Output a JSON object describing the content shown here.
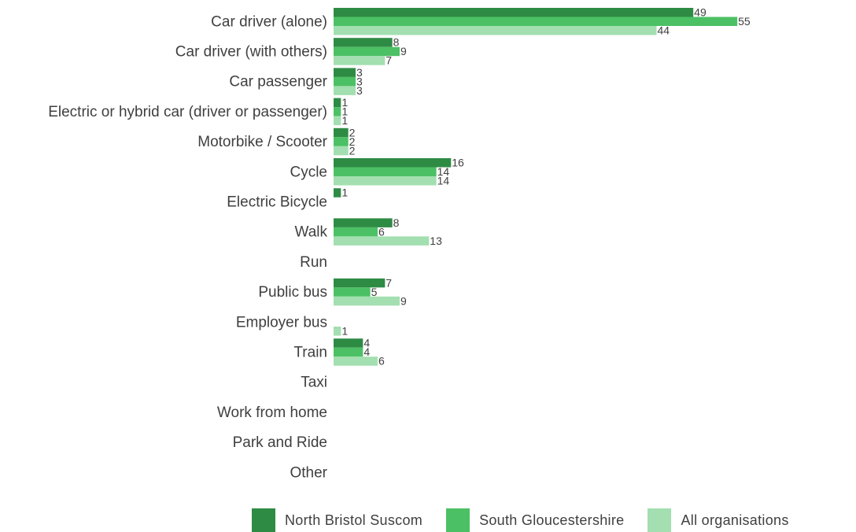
{
  "chart_data": {
    "type": "bar",
    "orientation": "horizontal",
    "categories": [
      "Car driver (alone)",
      "Car driver (with others)",
      "Car passenger",
      "Electric or hybrid car (driver or passenger)",
      "Motorbike / Scooter",
      "Cycle",
      "Electric Bicycle",
      "Walk",
      "Run",
      "Public bus",
      "Employer bus",
      "Train",
      "Taxi",
      "Work from home",
      "Park and Ride",
      "Other"
    ],
    "series": [
      {
        "name": "North Bristol Suscom",
        "color": "#2e8b44",
        "values": [
          49,
          8,
          3,
          1,
          2,
          16,
          1,
          8,
          null,
          7,
          null,
          4,
          null,
          null,
          null,
          null
        ]
      },
      {
        "name": "South Gloucestershire",
        "color": "#4cc064",
        "values": [
          55,
          9,
          3,
          1,
          2,
          14,
          null,
          6,
          null,
          5,
          null,
          4,
          null,
          null,
          null,
          null
        ]
      },
      {
        "name": "All organisations",
        "color": "#a3dfb0",
        "values": [
          44,
          7,
          3,
          1,
          2,
          14,
          null,
          13,
          null,
          9,
          1,
          6,
          null,
          null,
          null,
          null
        ]
      }
    ],
    "xlim": [
      0,
      60
    ],
    "grid": false,
    "axis_visible": false,
    "data_labels": true,
    "legend_position": "bottom"
  }
}
